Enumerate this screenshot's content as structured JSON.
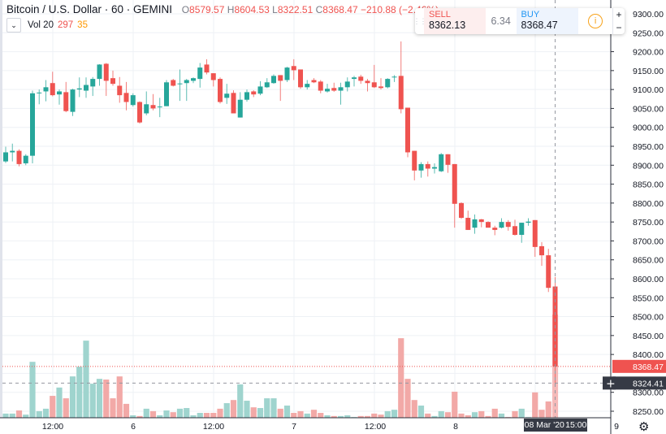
{
  "header": {
    "symbol": "Bitcoin / U.S. Dollar · 60 · GEMINI",
    "o_label": "O",
    "o": "8579.57",
    "h_label": "H",
    "h": "8604.53",
    "l_label": "L",
    "l": "8322.51",
    "c_label": "C",
    "c": "8368.47",
    "change": "−210.88 (−2.46%)"
  },
  "volume_legend": {
    "label": "Vol 20",
    "value": "297",
    "ma": "35"
  },
  "trade_widget": {
    "sell_label": "SELL",
    "sell_price": "8362.13",
    "spread": "6.34",
    "buy_label": "BUY",
    "buy_price": "8368.47",
    "plus": "+",
    "minus": "−"
  },
  "crosshair": {
    "date": "08 Mar '20",
    "time": "15:00",
    "price": "8324.41"
  },
  "colors": {
    "up": "#26a69a",
    "down": "#ef5350",
    "up_volume": "#9fd4ce",
    "down_volume": "#f2a9a7",
    "grid": "#eef1f5"
  },
  "chart_data": {
    "type": "candlestick",
    "y_ticks": [
      "9300.00",
      "9250.00",
      "9200.00",
      "9150.00",
      "9100.00",
      "9050.00",
      "9000.00",
      "8950.00",
      "8900.00",
      "8850.00",
      "8800.00",
      "8750.00",
      "8700.00",
      "8650.00",
      "8600.00",
      "8550.00",
      "8500.00",
      "8450.00",
      "8400.00",
      "8300.00",
      "8250.00"
    ],
    "last_price_label": "8368.47",
    "x_ticks": [
      "12:00",
      "6",
      "12:00",
      "7",
      "12:00",
      "8",
      "9"
    ],
    "ylim": [
      8250,
      9300
    ],
    "grid": true,
    "ohlc": [
      [
        8910,
        8949,
        8906,
        8934
      ],
      [
        8934,
        8957,
        8910,
        8938
      ],
      [
        8938,
        8942,
        8897,
        8903
      ],
      [
        8905,
        8929,
        8900,
        8925
      ],
      [
        8925,
        9097,
        8905,
        9090
      ],
      [
        9090,
        9100,
        9061,
        9092
      ],
      [
        9095,
        9125,
        9069,
        9106
      ],
      [
        9117,
        9147,
        9082,
        9085
      ],
      [
        9087,
        9100,
        9060,
        9095
      ],
      [
        9093,
        9120,
        9040,
        9043
      ],
      [
        9041,
        9102,
        9030,
        9100
      ],
      [
        9100,
        9132,
        9080,
        9103
      ],
      [
        9097,
        9132,
        9078,
        9112
      ],
      [
        9108,
        9133,
        9083,
        9128
      ],
      [
        9128,
        9167,
        9110,
        9166
      ],
      [
        9168,
        9170,
        9083,
        9123
      ],
      [
        9130,
        9150,
        9110,
        9115
      ],
      [
        9110,
        9133,
        9065,
        9085
      ],
      [
        9091,
        9120,
        9045,
        9067
      ],
      [
        9059,
        9090,
        9055,
        9085
      ],
      [
        9067,
        9069,
        9010,
        9013
      ],
      [
        9037,
        9095,
        9032,
        9061
      ],
      [
        9059,
        9088,
        9045,
        9050
      ],
      [
        9053,
        9078,
        9027,
        9055
      ],
      [
        9056,
        9125,
        9056,
        9119
      ],
      [
        9125,
        9128,
        9108,
        9110
      ],
      [
        9114,
        9153,
        9070,
        9116
      ],
      [
        9117,
        9128,
        9070,
        9125
      ],
      [
        9123,
        9132,
        9117,
        9130
      ],
      [
        9128,
        9170,
        9105,
        9158
      ],
      [
        9166,
        9180,
        9140,
        9145
      ],
      [
        9143,
        9143,
        9108,
        9125
      ],
      [
        9128,
        9132,
        9063,
        9067
      ],
      [
        9078,
        9115,
        9062,
        9089
      ],
      [
        9091,
        9098,
        9037,
        9037
      ],
      [
        9026,
        9093,
        9026,
        9073
      ],
      [
        9073,
        9100,
        9068,
        9093
      ],
      [
        9095,
        9098,
        9080,
        9087
      ],
      [
        9089,
        9122,
        9085,
        9108
      ],
      [
        9106,
        9130,
        9104,
        9119
      ],
      [
        9117,
        9140,
        9115,
        9136
      ],
      [
        9138,
        9138,
        9070,
        9123
      ],
      [
        9125,
        9160,
        9120,
        9158
      ],
      [
        9162,
        9180,
        9125,
        9151
      ],
      [
        9153,
        9153,
        9102,
        9106
      ],
      [
        9106,
        9125,
        9100,
        9115
      ],
      [
        9125,
        9130,
        9117,
        9119
      ],
      [
        9121,
        9125,
        9090,
        9097
      ],
      [
        9095,
        9115,
        9092,
        9102
      ],
      [
        9104,
        9118,
        9094,
        9097
      ],
      [
        9097,
        9118,
        9060,
        9106
      ],
      [
        9106,
        9132,
        9095,
        9121
      ],
      [
        9128,
        9136,
        9108,
        9132
      ],
      [
        9134,
        9139,
        9115,
        9123
      ],
      [
        9123,
        9128,
        9095,
        9117
      ],
      [
        9119,
        9165,
        9104,
        9106
      ],
      [
        9108,
        9130,
        9100,
        9104
      ],
      [
        9106,
        9130,
        9103,
        9128
      ],
      [
        9132,
        9138,
        9120,
        9134
      ],
      [
        9136,
        9227,
        9037,
        9048
      ],
      [
        9052,
        9052,
        8921,
        8934
      ],
      [
        8938,
        8938,
        8860,
        8886
      ],
      [
        8886,
        8908,
        8867,
        8903
      ],
      [
        8903,
        8910,
        8870,
        8891
      ],
      [
        8891,
        8905,
        8878,
        8895
      ],
      [
        8884,
        8932,
        8882,
        8929
      ],
      [
        8929,
        8929,
        8880,
        8901
      ],
      [
        8903,
        8903,
        8735,
        8798
      ],
      [
        8800,
        8802,
        8758,
        8761
      ],
      [
        8761,
        8780,
        8729,
        8729
      ],
      [
        8735,
        8770,
        8719,
        8757
      ],
      [
        8757,
        8758,
        8736,
        8750
      ],
      [
        8750,
        8752,
        8735,
        8735
      ],
      [
        8735,
        8740,
        8715,
        8729
      ],
      [
        8735,
        8760,
        8733,
        8750
      ],
      [
        8750,
        8755,
        8727,
        8737
      ],
      [
        8739,
        8756,
        8714,
        8716
      ],
      [
        8716,
        8748,
        8695,
        8748
      ],
      [
        8748,
        8760,
        8740,
        8751
      ],
      [
        8755,
        8755,
        8658,
        8684
      ],
      [
        8686,
        8697,
        8634,
        8662
      ],
      [
        8662,
        8679,
        8565,
        8576
      ],
      [
        8579.57,
        8604.53,
        8322.51,
        8368.47
      ]
    ],
    "volume": [
      12,
      12,
      21,
      9,
      161,
      19,
      26,
      63,
      87,
      56,
      119,
      147,
      222,
      98,
      112,
      110,
      56,
      119,
      40,
      7,
      5,
      26,
      19,
      7,
      21,
      16,
      26,
      28,
      7,
      14,
      14,
      14,
      26,
      42,
      51,
      96,
      49,
      30,
      28,
      56,
      56,
      26,
      35,
      14,
      19,
      12,
      23,
      14,
      7,
      5,
      5,
      7,
      2,
      5,
      5,
      12,
      9,
      19,
      23,
      229,
      112,
      51,
      35,
      12,
      5,
      19,
      16,
      75,
      12,
      7,
      16,
      19,
      5,
      26,
      12,
      2,
      19,
      26,
      2,
      73,
      23,
      47,
      297
    ]
  }
}
